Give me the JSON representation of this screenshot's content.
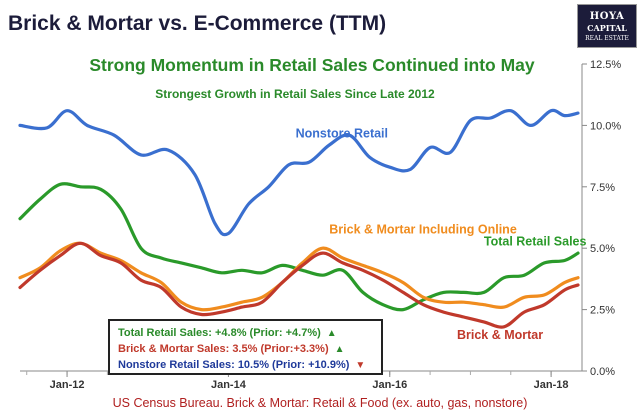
{
  "title": "Brick & Mortar vs. E-Commerce (TTM)",
  "logo": {
    "line1": "HOYA",
    "line2": "CAPITAL",
    "line3": "REAL ESTATE"
  },
  "subtitle": "Strong Momentum in Retail Sales Continued into May",
  "subtitle2": "Strongest Growth in Retail Sales Since Late 2012",
  "source": "US Census Bureau. Brick & Mortar: Retail & Food (ex. auto, gas, nonstore)",
  "legend_box": [
    {
      "text": "Total Retail Sales: +4.8% (Prior: +4.7%)",
      "color": "#2a8a2a",
      "arrow": "▲",
      "arrow_color": "#2a8a2a"
    },
    {
      "text": "Brick & Mortar Sales: 3.5% (Prior:+3.3%)",
      "color": "#c0392b",
      "arrow": "▲",
      "arrow_color": "#2a8a2a"
    },
    {
      "text": "Nonstore Retail Sales: 10.5% (Prior: +10.9%)",
      "color": "#1f3a9a",
      "arrow": "▼",
      "arrow_color": "#c0392b"
    }
  ],
  "chart_data": {
    "type": "line",
    "x_range": [
      "2011-06",
      "2018-05"
    ],
    "y_range": [
      0,
      12.5
    ],
    "y_axis_position": "right",
    "y_ticks": [
      "0.0%",
      "2.5%",
      "5.0%",
      "7.5%",
      "10.0%",
      "12.5%"
    ],
    "y_tick_values": [
      0,
      2.5,
      5,
      7.5,
      10,
      12.5
    ],
    "x_ticks": [
      "Jan-12",
      "Jan-14",
      "Jan-16",
      "Jan-18"
    ],
    "x_tick_values": [
      "2012-01",
      "2014-01",
      "2016-01",
      "2018-01"
    ],
    "grid": false,
    "series": [
      {
        "name": "Nonstore Retail",
        "color": "#3a6fcf",
        "x": [
          "2011-06",
          "2011-10",
          "2012-01",
          "2012-04",
          "2012-08",
          "2012-12",
          "2013-04",
          "2013-08",
          "2013-11",
          "2014-01",
          "2014-04",
          "2014-07",
          "2014-10",
          "2015-01",
          "2015-04",
          "2015-07",
          "2015-10",
          "2016-01",
          "2016-04",
          "2016-07",
          "2016-10",
          "2017-01",
          "2017-04",
          "2017-07",
          "2017-10",
          "2018-01",
          "2018-03",
          "2018-05"
        ],
        "values": [
          10.0,
          9.9,
          10.6,
          10.0,
          9.6,
          8.8,
          9.0,
          8.0,
          6.0,
          5.6,
          6.8,
          7.5,
          8.4,
          8.5,
          9.2,
          9.6,
          8.7,
          8.3,
          8.2,
          9.1,
          8.9,
          10.2,
          10.3,
          10.6,
          10.0,
          10.6,
          10.4,
          10.5
        ]
      },
      {
        "name": "Total Retail Sales",
        "color": "#2a9a2a",
        "x": [
          "2011-06",
          "2011-09",
          "2011-12",
          "2012-03",
          "2012-06",
          "2012-09",
          "2012-12",
          "2013-03",
          "2013-06",
          "2013-09",
          "2013-12",
          "2014-03",
          "2014-06",
          "2014-09",
          "2014-12",
          "2015-03",
          "2015-06",
          "2015-09",
          "2015-12",
          "2016-03",
          "2016-06",
          "2016-09",
          "2016-12",
          "2017-03",
          "2017-06",
          "2017-09",
          "2017-12",
          "2018-03",
          "2018-05"
        ],
        "values": [
          6.2,
          7.0,
          7.6,
          7.5,
          7.4,
          6.6,
          5.0,
          4.6,
          4.4,
          4.2,
          4.0,
          4.1,
          4.0,
          4.3,
          4.1,
          3.9,
          4.1,
          3.2,
          2.7,
          2.5,
          2.9,
          3.2,
          3.2,
          3.2,
          3.8,
          3.9,
          4.4,
          4.5,
          4.8
        ]
      },
      {
        "name": "Brick & Mortar Including Online",
        "color": "#f08c1e",
        "x": [
          "2011-06",
          "2011-09",
          "2011-12",
          "2012-03",
          "2012-06",
          "2012-09",
          "2012-12",
          "2013-03",
          "2013-06",
          "2013-09",
          "2013-12",
          "2014-03",
          "2014-06",
          "2014-09",
          "2014-12",
          "2015-03",
          "2015-06",
          "2015-09",
          "2015-12",
          "2016-03",
          "2016-06",
          "2016-09",
          "2016-12",
          "2017-03",
          "2017-06",
          "2017-09",
          "2017-12",
          "2018-03",
          "2018-05"
        ],
        "values": [
          3.8,
          4.2,
          4.9,
          5.2,
          4.8,
          4.5,
          4.0,
          3.6,
          2.8,
          2.5,
          2.6,
          2.8,
          3.0,
          3.6,
          4.4,
          5.0,
          4.6,
          4.3,
          4.0,
          3.6,
          3.0,
          2.8,
          2.8,
          2.7,
          2.6,
          3.0,
          3.1,
          3.6,
          3.8
        ]
      },
      {
        "name": "Brick & Mortar",
        "color": "#c0392b",
        "x": [
          "2011-06",
          "2011-09",
          "2011-12",
          "2012-03",
          "2012-06",
          "2012-09",
          "2012-12",
          "2013-03",
          "2013-06",
          "2013-09",
          "2013-12",
          "2014-03",
          "2014-06",
          "2014-09",
          "2014-12",
          "2015-03",
          "2015-06",
          "2015-09",
          "2015-12",
          "2016-03",
          "2016-06",
          "2016-09",
          "2016-12",
          "2017-03",
          "2017-06",
          "2017-09",
          "2017-12",
          "2018-03",
          "2018-05"
        ],
        "values": [
          3.4,
          4.1,
          4.7,
          5.2,
          4.7,
          4.4,
          3.7,
          3.4,
          2.6,
          2.3,
          2.4,
          2.6,
          2.8,
          3.6,
          4.3,
          4.8,
          4.4,
          4.1,
          3.7,
          3.2,
          2.7,
          2.4,
          2.2,
          2.0,
          1.8,
          2.4,
          2.7,
          3.3,
          3.5
        ]
      }
    ],
    "annotations": [
      {
        "text": "Nonstore Retail",
        "color": "#3a6fcf",
        "x": "2014-11",
        "y": 9.5
      },
      {
        "text": "Brick & Mortar Including Online",
        "color": "#f08c1e",
        "x": "2015-04",
        "y": 5.6
      },
      {
        "text": "Total Retail Sales",
        "color": "#2a9a2a",
        "x": "2017-03",
        "y": 5.1
      },
      {
        "text": "Brick & Mortar",
        "color": "#c0392b",
        "x": "2016-11",
        "y": 1.3
      }
    ]
  }
}
